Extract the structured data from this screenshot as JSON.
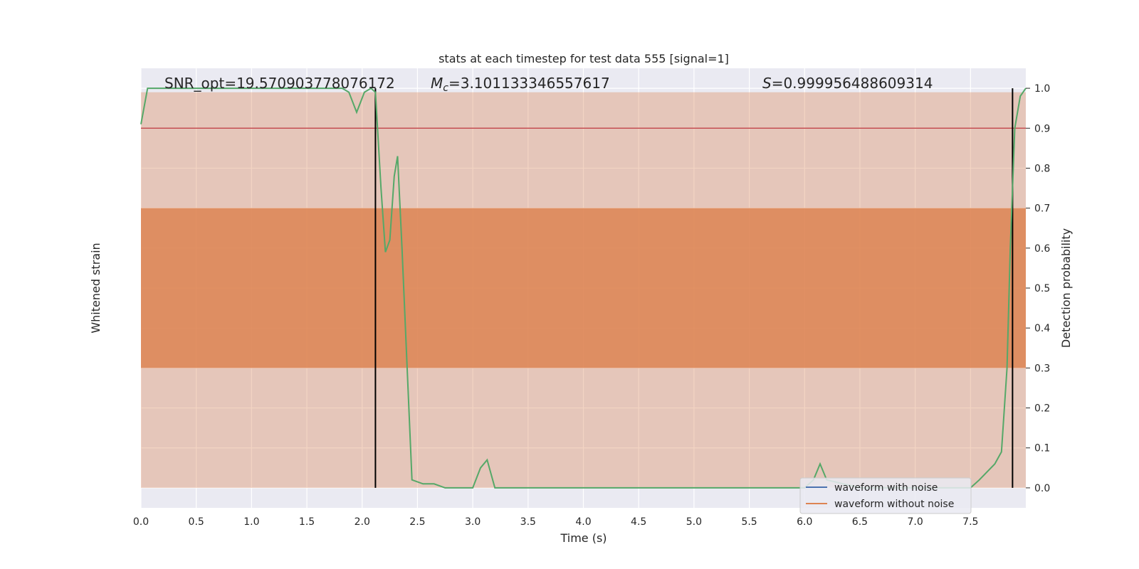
{
  "chart_data": {
    "type": "line",
    "title": "stats at each timestep for test data 555 [signal=1]",
    "xlabel": "Time (s)",
    "ylabel_left": "Whitened strain",
    "ylabel_right": "Detection probability",
    "xlim": [
      0.0,
      8.0
    ],
    "ylim_right": [
      -0.05,
      1.05
    ],
    "x_ticks": [
      0.0,
      0.5,
      1.0,
      1.5,
      2.0,
      2.5,
      3.0,
      3.5,
      4.0,
      4.5,
      5.0,
      5.5,
      6.0,
      6.5,
      7.0,
      7.5
    ],
    "x_tick_labels": [
      "0.0",
      "0.5",
      "1.0",
      "1.5",
      "2.0",
      "2.5",
      "3.0",
      "3.5",
      "4.0",
      "4.5",
      "5.0",
      "5.5",
      "6.0",
      "6.5",
      "7.0",
      "7.5"
    ],
    "y_right_ticks": [
      0.0,
      0.1,
      0.2,
      0.3,
      0.4,
      0.5,
      0.6,
      0.7,
      0.8,
      0.9,
      1.0
    ],
    "y_right_tick_labels": [
      "0.0",
      "0.1",
      "0.2",
      "0.3",
      "0.4",
      "0.5",
      "0.6",
      "0.7",
      "0.8",
      "0.9",
      "1.0"
    ],
    "grid": true,
    "legend_position": "lower-right",
    "annotations": {
      "snr": "SNR_opt=19.570903778076172",
      "mc_symbol": "M",
      "mc_subscript": "c",
      "mc_value": "=3.101133346557617",
      "s_symbol": "S",
      "s_value": "=0.999956488609314"
    },
    "threshold": {
      "value": 0.9,
      "color": "#c44e52"
    },
    "vertical_lines": [
      2.12,
      7.88
    ],
    "series": [
      {
        "name": "waveform with noise",
        "color": "#4c72b0"
      },
      {
        "name": "waveform without noise",
        "color": "#dd8452",
        "band": {
          "x": [
            0.0,
            8.0
          ],
          "y_min": 0.0,
          "y_max": 0.99
        }
      },
      {
        "color": "#55a868",
        "x": [
          0.0,
          0.06,
          0.2,
          0.5,
          1.0,
          1.5,
          1.7,
          1.82,
          1.88,
          1.95,
          2.02,
          2.08,
          2.12,
          2.17,
          2.21,
          2.25,
          2.29,
          2.32,
          2.36,
          2.45,
          2.55,
          2.65,
          2.75,
          2.9,
          3.0,
          3.07,
          3.13,
          3.2,
          3.3,
          3.5,
          4.0,
          4.5,
          4.8,
          5.0,
          5.5,
          6.0,
          6.08,
          6.14,
          6.2,
          6.5,
          7.0,
          7.3,
          7.5,
          7.58,
          7.65,
          7.72,
          7.78,
          7.83,
          7.86,
          7.9,
          7.95,
          8.0
        ],
        "y": [
          0.91,
          1.0,
          1.0,
          1.0,
          1.0,
          1.0,
          1.0,
          1.0,
          0.99,
          0.94,
          0.99,
          1.0,
          0.99,
          0.75,
          0.59,
          0.62,
          0.78,
          0.83,
          0.6,
          0.02,
          0.01,
          0.01,
          0.0,
          0.0,
          0.0,
          0.05,
          0.07,
          0.0,
          0.0,
          0.0,
          0.0,
          0.0,
          0.0,
          0.0,
          0.0,
          0.0,
          0.02,
          0.06,
          0.02,
          0.0,
          0.0,
          0.0,
          0.0,
          0.02,
          0.04,
          0.06,
          0.09,
          0.3,
          0.6,
          0.9,
          0.98,
          1.0
        ]
      }
    ]
  }
}
